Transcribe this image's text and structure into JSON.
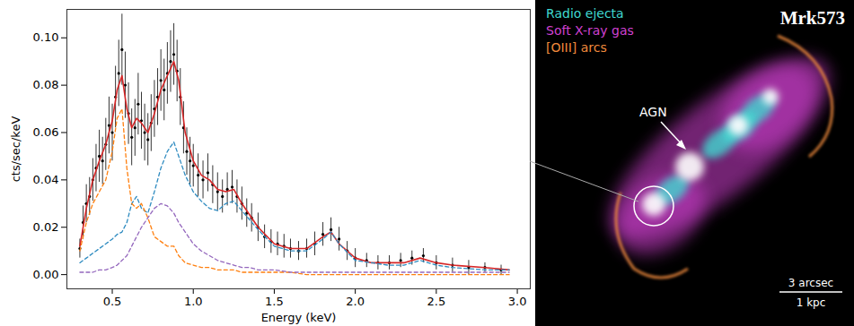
{
  "chart_data": {
    "type": "line",
    "x_label": "Energy (keV)",
    "y_label": "cts/sec/keV",
    "xlim": [
      0.22,
      3.08
    ],
    "ylim": [
      -0.006,
      0.112
    ],
    "xticks": [
      0.5,
      {
        "value": 1.0,
        "label": "1.0"
      },
      1.5,
      {
        "value": 2.0,
        "label": "2.0"
      },
      2.5,
      {
        "value": 3.0,
        "label": "3.0"
      }
    ],
    "yticks": [
      {
        "value": 0,
        "label": "0.00"
      },
      0.02,
      0.04,
      0.06,
      0.08,
      {
        "value": 0.1,
        "label": "0.10"
      }
    ],
    "grid": false,
    "series": [
      {
        "type": "scatter",
        "color": "#000000",
        "marker": "dot",
        "x": [
          0.3,
          0.32,
          0.34,
          0.36,
          0.38,
          0.4,
          0.42,
          0.44,
          0.46,
          0.48,
          0.5,
          0.52,
          0.54,
          0.56,
          0.58,
          0.6,
          0.62,
          0.64,
          0.66,
          0.68,
          0.7,
          0.72,
          0.74,
          0.76,
          0.78,
          0.8,
          0.82,
          0.84,
          0.86,
          0.88,
          0.9,
          0.92,
          0.94,
          0.96,
          0.98,
          1.0,
          1.03,
          1.06,
          1.09,
          1.12,
          1.15,
          1.18,
          1.21,
          1.24,
          1.27,
          1.3,
          1.33,
          1.36,
          1.4,
          1.44,
          1.48,
          1.52,
          1.56,
          1.6,
          1.65,
          1.7,
          1.75,
          1.8,
          1.85,
          1.9,
          1.95,
          2.0,
          2.07,
          2.14,
          2.21,
          2.28,
          2.35,
          2.42,
          2.5,
          2.6,
          2.7,
          2.8,
          2.9
        ],
        "values": [
          0.011,
          0.022,
          0.03,
          0.033,
          0.04,
          0.045,
          0.05,
          0.048,
          0.055,
          0.063,
          0.06,
          0.075,
          0.085,
          0.095,
          0.08,
          0.068,
          0.058,
          0.062,
          0.072,
          0.065,
          0.06,
          0.057,
          0.064,
          0.07,
          0.075,
          0.082,
          0.078,
          0.085,
          0.09,
          0.093,
          0.086,
          0.075,
          0.062,
          0.052,
          0.048,
          0.046,
          0.042,
          0.04,
          0.043,
          0.038,
          0.035,
          0.033,
          0.036,
          0.037,
          0.033,
          0.03,
          0.026,
          0.024,
          0.02,
          0.016,
          0.014,
          0.013,
          0.012,
          0.011,
          0.01,
          0.011,
          0.013,
          0.017,
          0.019,
          0.015,
          0.01,
          0.007,
          0.006,
          0.005,
          0.005,
          0.006,
          0.007,
          0.008,
          0.005,
          0.004,
          0.003,
          0.003,
          0.002
        ],
        "errors": [
          0.004,
          0.007,
          0.008,
          0.008,
          0.009,
          0.01,
          0.011,
          0.01,
          0.011,
          0.012,
          0.012,
          0.013,
          0.014,
          0.015,
          0.014,
          0.013,
          0.012,
          0.012,
          0.013,
          0.012,
          0.012,
          0.011,
          0.012,
          0.012,
          0.012,
          0.013,
          0.013,
          0.013,
          0.013,
          0.013,
          0.013,
          0.012,
          0.011,
          0.01,
          0.01,
          0.009,
          0.009,
          0.008,
          0.008,
          0.008,
          0.008,
          0.007,
          0.007,
          0.007,
          0.007,
          0.007,
          0.006,
          0.006,
          0.006,
          0.005,
          0.005,
          0.005,
          0.005,
          0.004,
          0.004,
          0.004,
          0.005,
          0.005,
          0.005,
          0.005,
          0.004,
          0.004,
          0.003,
          0.003,
          0.003,
          0.003,
          0.003,
          0.003,
          0.003,
          0.003,
          0.003,
          0.002,
          0.002
        ]
      },
      {
        "type": "line",
        "color": "#d62728",
        "line_style": "solid",
        "x": [
          0.3,
          0.34,
          0.38,
          0.42,
          0.46,
          0.5,
          0.53,
          0.56,
          0.59,
          0.62,
          0.65,
          0.68,
          0.72,
          0.76,
          0.8,
          0.84,
          0.88,
          0.91,
          0.95,
          1.0,
          1.05,
          1.1,
          1.15,
          1.2,
          1.25,
          1.3,
          1.35,
          1.4,
          1.5,
          1.6,
          1.7,
          1.8,
          1.85,
          1.9,
          2.0,
          2.1,
          2.2,
          2.3,
          2.4,
          2.5,
          2.6,
          2.8,
          2.95
        ],
        "values": [
          0.012,
          0.028,
          0.04,
          0.048,
          0.055,
          0.065,
          0.078,
          0.084,
          0.07,
          0.062,
          0.066,
          0.064,
          0.06,
          0.068,
          0.078,
          0.084,
          0.09,
          0.082,
          0.06,
          0.048,
          0.042,
          0.04,
          0.036,
          0.035,
          0.036,
          0.03,
          0.025,
          0.02,
          0.013,
          0.011,
          0.011,
          0.016,
          0.018,
          0.013,
          0.007,
          0.005,
          0.005,
          0.005,
          0.007,
          0.005,
          0.004,
          0.003,
          0.002
        ]
      },
      {
        "type": "line",
        "color": "#2e8bc0",
        "line_style": "dashed",
        "x": [
          0.3,
          0.34,
          0.38,
          0.42,
          0.46,
          0.5,
          0.53,
          0.56,
          0.59,
          0.62,
          0.65,
          0.68,
          0.72,
          0.76,
          0.8,
          0.84,
          0.88,
          0.91,
          0.95,
          1.0,
          1.05,
          1.1,
          1.15,
          1.2,
          1.25,
          1.3,
          1.35,
          1.4,
          1.5,
          1.6,
          1.7,
          1.8,
          1.85,
          1.9,
          2.0,
          2.1,
          2.2,
          2.3,
          2.4,
          2.5,
          2.6,
          2.8,
          2.95
        ],
        "values": [
          0.005,
          0.007,
          0.009,
          0.011,
          0.013,
          0.015,
          0.017,
          0.018,
          0.022,
          0.03,
          0.033,
          0.028,
          0.026,
          0.035,
          0.045,
          0.052,
          0.056,
          0.05,
          0.042,
          0.035,
          0.031,
          0.028,
          0.027,
          0.03,
          0.031,
          0.027,
          0.023,
          0.019,
          0.012,
          0.01,
          0.01,
          0.015,
          0.018,
          0.013,
          0.006,
          0.005,
          0.004,
          0.004,
          0.006,
          0.004,
          0.003,
          0.002,
          0.002
        ]
      },
      {
        "type": "line",
        "color": "#ff7f0e",
        "line_style": "dashed",
        "x": [
          0.3,
          0.34,
          0.38,
          0.42,
          0.46,
          0.5,
          0.53,
          0.56,
          0.59,
          0.62,
          0.65,
          0.68,
          0.72,
          0.76,
          0.8,
          0.84,
          0.88,
          0.91,
          0.95,
          1.0,
          1.05,
          1.1,
          1.15,
          1.2,
          1.25,
          1.3,
          1.35,
          1.4,
          1.5,
          1.6,
          1.7,
          1.8,
          1.85,
          1.9,
          2.0,
          2.1,
          2.2,
          2.3,
          2.4,
          2.5,
          2.6,
          2.8,
          2.95
        ],
        "values": [
          0.01,
          0.022,
          0.03,
          0.035,
          0.04,
          0.052,
          0.066,
          0.07,
          0.045,
          0.03,
          0.028,
          0.03,
          0.024,
          0.016,
          0.014,
          0.012,
          0.012,
          0.008,
          0.005,
          0.004,
          0.003,
          0.003,
          0.002,
          0.002,
          0.002,
          0.001,
          0.001,
          0.001,
          0.001,
          0.001,
          0,
          0,
          0,
          0,
          0,
          0,
          0,
          0,
          0,
          0,
          0,
          0,
          0
        ]
      },
      {
        "type": "line",
        "color": "#9467bd",
        "line_style": "dashed",
        "x": [
          0.3,
          0.34,
          0.38,
          0.42,
          0.46,
          0.5,
          0.53,
          0.56,
          0.59,
          0.62,
          0.65,
          0.68,
          0.72,
          0.76,
          0.8,
          0.84,
          0.88,
          0.91,
          0.95,
          1.0,
          1.05,
          1.1,
          1.15,
          1.2,
          1.25,
          1.3,
          1.35,
          1.4,
          1.5,
          1.6,
          1.7,
          1.8,
          1.85,
          1.9,
          2.0,
          2.1,
          2.2,
          2.3,
          2.4,
          2.5,
          2.6,
          2.8,
          2.95
        ],
        "values": [
          0.001,
          0.001,
          0.001,
          0.002,
          0.002,
          0.003,
          0.004,
          0.006,
          0.008,
          0.012,
          0.016,
          0.02,
          0.024,
          0.028,
          0.03,
          0.029,
          0.026,
          0.022,
          0.018,
          0.013,
          0.01,
          0.008,
          0.006,
          0.005,
          0.004,
          0.003,
          0.003,
          0.002,
          0.002,
          0.001,
          0.001,
          0.001,
          0.001,
          0.001,
          0.001,
          0.001,
          0.001,
          0.001,
          0.001,
          0.001,
          0.001,
          0.001,
          0.001
        ]
      }
    ]
  },
  "image_panel": {
    "title": "Mrk573",
    "legend": [
      {
        "label": "Radio ejecta",
        "color": "#3fd8d0"
      },
      {
        "label": "Soft X-ray gas",
        "color": "#d040d0"
      },
      {
        "label": "[OIII] arcs",
        "color": "#f08a3c"
      }
    ],
    "annotation": "AGN",
    "scale_bar": [
      "3 arcsec",
      "1 kpc"
    ]
  }
}
